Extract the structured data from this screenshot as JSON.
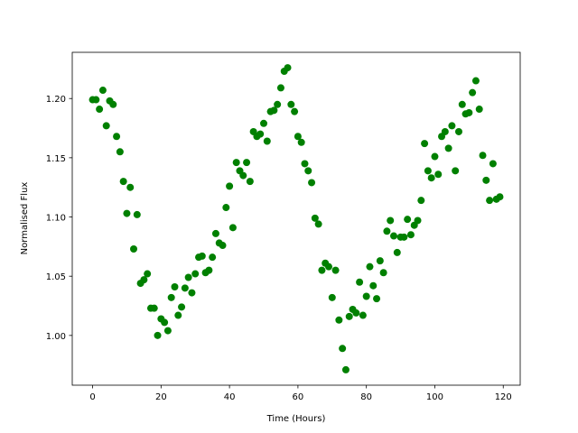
{
  "chart_data": {
    "type": "scatter",
    "x_label": "Time (Hours)",
    "y_label": "Normalised Flux",
    "color": "green",
    "x": [
      0,
      1,
      2,
      3,
      4,
      5,
      6,
      7,
      8,
      9,
      10,
      11,
      12,
      13,
      14,
      15,
      16,
      17,
      18,
      19,
      20,
      21,
      22,
      23,
      24,
      25,
      26,
      27,
      28,
      29,
      30,
      31,
      32,
      33,
      34,
      35,
      36,
      37,
      38,
      39,
      40,
      41,
      42,
      43,
      44,
      45,
      46,
      47,
      48,
      49,
      50,
      51,
      52,
      53,
      54,
      55,
      56,
      57,
      58,
      59,
      60,
      61,
      62,
      63,
      64,
      65,
      66,
      67,
      68,
      69,
      70,
      71,
      72,
      73,
      74,
      75,
      76,
      77,
      78,
      79,
      80,
      81,
      82,
      83,
      84,
      85,
      86,
      87,
      88,
      89,
      90,
      91,
      92,
      93,
      94,
      95,
      96,
      97,
      98,
      99,
      100,
      101,
      102,
      103,
      104,
      105,
      106,
      107,
      108,
      109,
      110,
      111,
      112,
      113,
      114,
      115,
      116,
      117,
      118,
      119
    ],
    "values": [
      1.199,
      1.199,
      1.191,
      1.207,
      1.177,
      1.198,
      1.195,
      1.168,
      1.155,
      1.13,
      1.103,
      1.125,
      1.073,
      1.102,
      1.044,
      1.047,
      1.052,
      1.023,
      1.023,
      1.0,
      1.014,
      1.011,
      1.004,
      1.032,
      1.041,
      1.017,
      1.024,
      1.04,
      1.049,
      1.036,
      1.052,
      1.066,
      1.067,
      1.053,
      1.055,
      1.066,
      1.086,
      1.078,
      1.076,
      1.108,
      1.126,
      1.091,
      1.146,
      1.139,
      1.135,
      1.146,
      1.13,
      1.172,
      1.168,
      1.17,
      1.179,
      1.164,
      1.189,
      1.19,
      1.195,
      1.209,
      1.223,
      1.226,
      1.195,
      1.189,
      1.168,
      1.163,
      1.145,
      1.139,
      1.129,
      1.099,
      1.094,
      1.055,
      1.061,
      1.058,
      1.032,
      1.055,
      1.013,
      0.989,
      0.971,
      1.016,
      1.022,
      1.019,
      1.045,
      1.017,
      1.033,
      1.058,
      1.042,
      1.031,
      1.063,
      1.053,
      1.088,
      1.097,
      1.084,
      1.07,
      1.083,
      1.083,
      1.098,
      1.085,
      1.093,
      1.097,
      1.114,
      1.162,
      1.139,
      1.133,
      1.151,
      1.136,
      1.168,
      1.172,
      1.158,
      1.177,
      1.139,
      1.172,
      1.195,
      1.187,
      1.188,
      1.205,
      1.215,
      1.191,
      1.152,
      1.131,
      1.114,
      1.145,
      1.115,
      1.117
    ],
    "xlim": [
      -5.95,
      124.95
    ],
    "ylim": [
      0.958,
      1.239
    ],
    "xticks": [
      0,
      20,
      40,
      60,
      80,
      100,
      120
    ],
    "yticks": [
      {
        "value": 1.0,
        "label": "1.00"
      },
      1.05,
      {
        "value": 1.1,
        "label": "1.10"
      },
      1.15,
      {
        "value": 1.2,
        "label": "1.20"
      }
    ]
  }
}
